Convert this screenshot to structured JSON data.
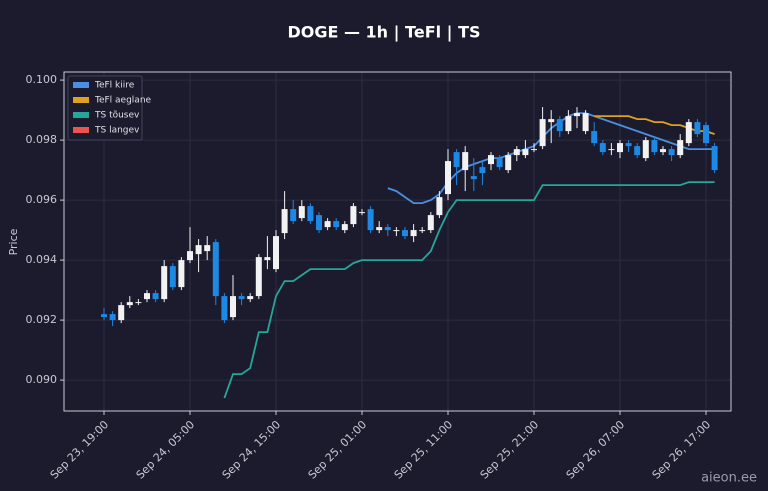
{
  "chart_data": {
    "type": "candlestick",
    "title": "DOGE — 1h  |  TeFl  |  TS",
    "y_label": "Price",
    "watermark": "aieon.ee",
    "categories": [
      "Sep 23, 19:00",
      null,
      null,
      null,
      null,
      null,
      null,
      null,
      null,
      null,
      "Sep 24, 05:00",
      null,
      null,
      null,
      null,
      null,
      null,
      null,
      null,
      null,
      "Sep 24, 15:00",
      null,
      null,
      null,
      null,
      null,
      null,
      null,
      null,
      null,
      "Sep 25, 01:00",
      null,
      null,
      null,
      null,
      null,
      null,
      null,
      null,
      null,
      "Sep 25, 11:00",
      null,
      null,
      null,
      null,
      null,
      null,
      null,
      null,
      null,
      "Sep 25, 21:00",
      null,
      null,
      null,
      null,
      null,
      null,
      null,
      null,
      null,
      "Sep 26, 07:00",
      null,
      null,
      null,
      null,
      null,
      null,
      null,
      null,
      null,
      "Sep 26, 17:00",
      null
    ],
    "open": [
      0.0922,
      0.0922,
      0.092,
      0.0925,
      0.0926,
      0.0927,
      0.0929,
      0.0927,
      0.0938,
      0.0931,
      0.094,
      0.0942,
      0.0943,
      0.0946,
      0.0928,
      0.0921,
      0.0928,
      0.0927,
      0.0928,
      0.094,
      0.0937,
      0.0949,
      0.0957,
      0.0954,
      0.0958,
      0.0955,
      0.0951,
      0.0953,
      0.095,
      0.0952,
      0.0956,
      0.0957,
      0.095,
      0.0951,
      0.095,
      0.095,
      0.0948,
      0.095,
      0.095,
      0.0955,
      0.0962,
      0.0976,
      0.097,
      0.0968,
      0.0971,
      0.0972,
      0.0974,
      0.097,
      0.0975,
      0.0975,
      0.0977,
      0.0978,
      0.0986,
      0.0987,
      0.0983,
      0.0988,
      0.0983,
      0.0983,
      0.0979,
      0.0977,
      0.0976,
      0.0979,
      0.0978,
      0.0974,
      0.098,
      0.0976,
      0.0977,
      0.0975,
      0.0979,
      0.0986,
      0.0985,
      0.0978
    ],
    "high": [
      0.0924,
      0.0923,
      0.0926,
      0.0928,
      0.0927,
      0.093,
      0.093,
      0.094,
      0.0939,
      0.0941,
      0.0951,
      0.0947,
      0.0948,
      0.0947,
      0.0929,
      0.0935,
      0.0929,
      0.0929,
      0.0942,
      0.0948,
      0.095,
      0.0963,
      0.096,
      0.096,
      0.0959,
      0.0956,
      0.0954,
      0.0954,
      0.0953,
      0.0959,
      0.0957,
      0.0958,
      0.0953,
      0.0952,
      0.0951,
      0.0951,
      0.0952,
      0.0951,
      0.0956,
      0.0963,
      0.0977,
      0.0977,
      0.0978,
      0.0974,
      0.0973,
      0.0976,
      0.0975,
      0.0976,
      0.0978,
      0.098,
      0.0979,
      0.0991,
      0.099,
      0.0988,
      0.099,
      0.0991,
      0.099,
      0.0986,
      0.098,
      0.0979,
      0.098,
      0.098,
      0.0979,
      0.0981,
      0.0981,
      0.0978,
      0.0978,
      0.0982,
      0.0987,
      0.0987,
      0.0986,
      0.0979
    ],
    "low": [
      0.092,
      0.0918,
      0.0919,
      0.0924,
      0.0925,
      0.0926,
      0.0926,
      0.0926,
      0.093,
      0.093,
      0.0939,
      0.0936,
      0.094,
      0.0925,
      0.0919,
      0.092,
      0.0925,
      0.0926,
      0.0927,
      0.0937,
      0.0936,
      0.0947,
      0.0952,
      0.0953,
      0.0952,
      0.0949,
      0.095,
      0.095,
      0.0949,
      0.0951,
      0.0955,
      0.0949,
      0.0949,
      0.0948,
      0.0948,
      0.0947,
      0.0946,
      0.0949,
      0.0949,
      0.0954,
      0.096,
      0.0965,
      0.0963,
      0.0963,
      0.0965,
      0.097,
      0.097,
      0.0969,
      0.0973,
      0.0974,
      0.0976,
      0.0977,
      0.0979,
      0.0981,
      0.0982,
      0.0984,
      0.0982,
      0.0978,
      0.0975,
      0.0975,
      0.0974,
      0.0976,
      0.0974,
      0.0973,
      0.0975,
      0.0975,
      0.0973,
      0.0974,
      0.0978,
      0.0981,
      0.0978,
      0.0969
    ],
    "close": [
      0.0921,
      0.092,
      0.0925,
      0.0926,
      0.0926,
      0.0929,
      0.0927,
      0.0938,
      0.0931,
      0.094,
      0.0943,
      0.0945,
      0.0945,
      0.0928,
      0.092,
      0.0928,
      0.0927,
      0.0928,
      0.0941,
      0.0941,
      0.0948,
      0.0957,
      0.0953,
      0.0958,
      0.0953,
      0.095,
      0.0953,
      0.0951,
      0.0952,
      0.0958,
      0.0956,
      0.095,
      0.0951,
      0.095,
      0.095,
      0.0948,
      0.095,
      0.095,
      0.0955,
      0.0961,
      0.0973,
      0.0971,
      0.0976,
      0.0967,
      0.0969,
      0.0975,
      0.0971,
      0.0975,
      0.0977,
      0.0977,
      0.0977,
      0.0987,
      0.0987,
      0.0983,
      0.0988,
      0.0989,
      0.0989,
      0.0979,
      0.0976,
      0.0977,
      0.0979,
      0.0978,
      0.0975,
      0.098,
      0.0976,
      0.0977,
      0.0975,
      0.098,
      0.0986,
      0.0982,
      0.0979,
      0.097
    ],
    "up_color": "#f2f2f2",
    "down_color": "#1e88e5",
    "series": [
      {
        "name": "TeFl kiire",
        "color": "#4a90e2",
        "values": [
          null,
          null,
          null,
          null,
          null,
          null,
          null,
          null,
          null,
          null,
          null,
          null,
          null,
          null,
          null,
          null,
          null,
          null,
          null,
          null,
          null,
          null,
          null,
          null,
          null,
          null,
          null,
          null,
          null,
          null,
          null,
          null,
          null,
          0.0964,
          0.0963,
          0.0961,
          0.0959,
          0.0959,
          0.096,
          0.0962,
          0.0966,
          0.0969,
          0.0971,
          0.0972,
          0.0973,
          0.0974,
          0.0974,
          0.0975,
          0.0976,
          0.0977,
          0.0978,
          0.0981,
          0.0984,
          0.0986,
          0.0988,
          0.0989,
          0.0989,
          0.0988,
          0.0987,
          0.0986,
          0.0985,
          0.0984,
          0.0983,
          0.0982,
          0.0981,
          0.098,
          0.0979,
          0.0978,
          0.0977,
          0.0977,
          0.0977,
          0.0977
        ]
      },
      {
        "name": "TeFl aeglane",
        "color": "#e0a020",
        "values": [
          null,
          null,
          null,
          null,
          null,
          null,
          null,
          null,
          null,
          null,
          null,
          null,
          null,
          null,
          null,
          null,
          null,
          null,
          null,
          null,
          null,
          null,
          null,
          null,
          null,
          null,
          null,
          null,
          null,
          null,
          null,
          null,
          null,
          null,
          null,
          null,
          null,
          null,
          null,
          null,
          null,
          null,
          null,
          null,
          null,
          null,
          null,
          null,
          null,
          null,
          null,
          null,
          null,
          null,
          null,
          null,
          null,
          0.0988,
          0.0988,
          0.0988,
          0.0988,
          0.0988,
          0.0987,
          0.0987,
          0.0986,
          0.0986,
          0.0985,
          0.0985,
          0.0984,
          0.0983,
          0.0983,
          0.0982
        ]
      },
      {
        "name": "TS tõusev",
        "color": "#26a69a",
        "values": [
          null,
          null,
          null,
          null,
          null,
          null,
          null,
          null,
          null,
          null,
          null,
          null,
          null,
          null,
          0.0894,
          0.0902,
          0.0902,
          0.0904,
          0.0916,
          0.0916,
          0.0928,
          0.0933,
          0.0933,
          0.0935,
          0.0937,
          0.0937,
          0.0937,
          0.0937,
          0.0937,
          0.0939,
          0.094,
          0.094,
          0.094,
          0.094,
          0.094,
          0.094,
          0.094,
          0.094,
          0.0943,
          0.095,
          0.0956,
          0.096,
          0.096,
          0.096,
          0.096,
          0.096,
          0.096,
          0.096,
          0.096,
          0.096,
          0.096,
          0.0965,
          0.0965,
          0.0965,
          0.0965,
          0.0965,
          0.0965,
          0.0965,
          0.0965,
          0.0965,
          0.0965,
          0.0965,
          0.0965,
          0.0965,
          0.0965,
          0.0965,
          0.0965,
          0.0965,
          0.0966,
          0.0966,
          0.0966,
          0.0966
        ]
      },
      {
        "name": "TS langev",
        "color": "#ef5350",
        "values": [
          null,
          null,
          null,
          null,
          null,
          null,
          null,
          null,
          null,
          null,
          null,
          null,
          null,
          null,
          null,
          null,
          null,
          null,
          null,
          null,
          null,
          null,
          null,
          null,
          null,
          null,
          null,
          null,
          null,
          null,
          null,
          null,
          null,
          null,
          null,
          null,
          null,
          null,
          null,
          null,
          null,
          null,
          null,
          null,
          null,
          null,
          null,
          null,
          null,
          null,
          null,
          null,
          null,
          null,
          null,
          null,
          null,
          null,
          null,
          null,
          null,
          null,
          null,
          null,
          null,
          null,
          null,
          null,
          null,
          null,
          null,
          null
        ]
      }
    ],
    "ylim": [
      0.08897,
      0.10027
    ],
    "yticks": [
      {
        "value": 0.09,
        "label": "0.090"
      },
      0.092,
      0.094,
      0.096,
      0.098,
      {
        "value": 0.1,
        "label": "0.100"
      }
    ],
    "grid": true,
    "legend": "upper left"
  }
}
